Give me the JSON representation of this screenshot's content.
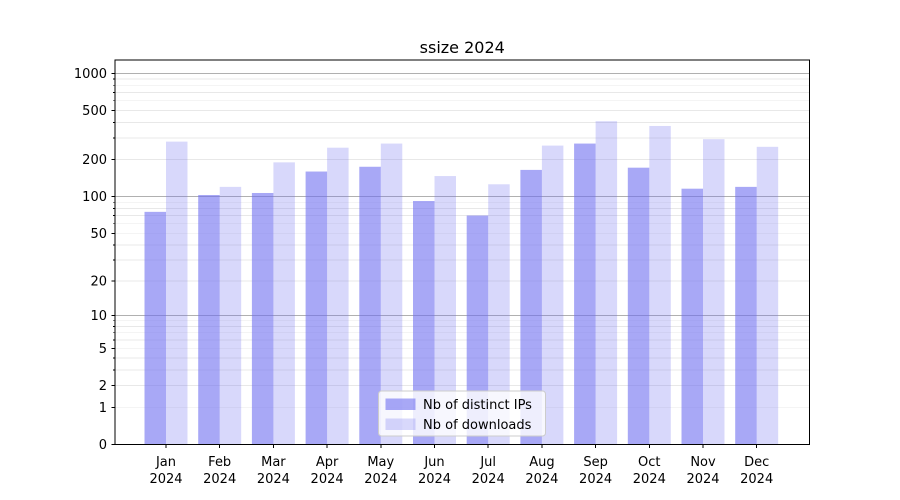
{
  "chart_data": {
    "type": "bar",
    "title": "ssize 2024",
    "categories": [
      "Jan",
      "Feb",
      "Mar",
      "Apr",
      "May",
      "Jun",
      "Jul",
      "Aug",
      "Sep",
      "Oct",
      "Nov",
      "Dec"
    ],
    "category_year_suffix": "2024",
    "series": [
      {
        "name": "Nb of distinct IPs",
        "values": [
          75,
          103,
          107,
          160,
          175,
          92,
          70,
          165,
          270,
          172,
          116,
          120
        ],
        "color": "#6e6ef0",
        "alpha": 0.6
      },
      {
        "name": "Nb of downloads",
        "values": [
          280,
          120,
          190,
          250,
          270,
          147,
          126,
          260,
          410,
          375,
          293,
          254
        ],
        "color": "#6e6ef0",
        "alpha": 0.27
      }
    ],
    "yscale": "log1p",
    "yticks": [
      0,
      1,
      2,
      5,
      10,
      20,
      50,
      100,
      200,
      500,
      1000
    ],
    "ylim": [
      0,
      1283
    ],
    "xlabel": "",
    "ylabel": "",
    "grid": {
      "enabled": true,
      "major_values": [
        10,
        100,
        1000
      ],
      "major_color": "#b0b0b0",
      "minor_color": "#e8e8e8"
    },
    "legend": {
      "position": "lower center",
      "background": "#ffffff",
      "border_color": "#cccccc"
    },
    "axis_color": "#000000",
    "background_color": "#ffffff"
  }
}
